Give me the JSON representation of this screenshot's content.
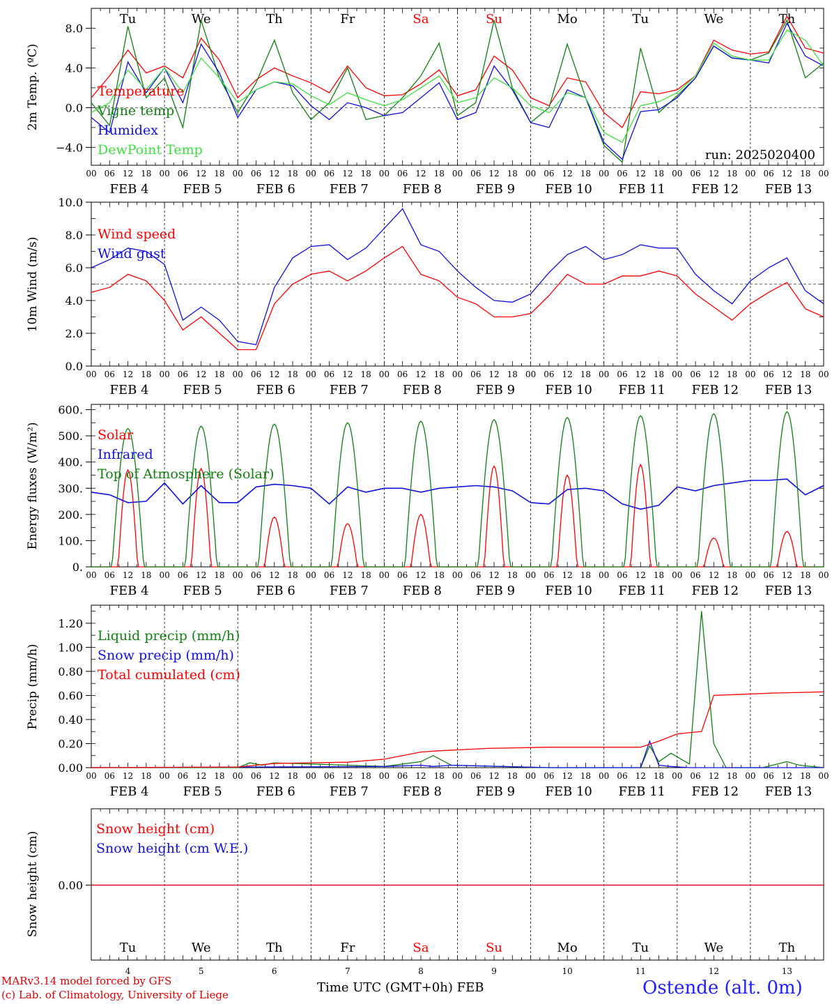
{
  "chart_data": [
    {
      "type": "line",
      "ylabel": "2m Temp. (ºC)",
      "ylim": [
        -5.8,
        10
      ],
      "yticks": [
        "8.0",
        "4.0",
        "0.0",
        "−4.0"
      ],
      "ytick_values": [
        8,
        4,
        0,
        -4
      ],
      "reference_line": 0,
      "annotation": "run: 2025020400",
      "day_labels": [
        "Tu",
        "We",
        "Th",
        "Fr",
        "Sa",
        "Su",
        "Mo",
        "Tu",
        "We",
        "Th"
      ],
      "x_hours": [
        0,
        6,
        12,
        18,
        24,
        30,
        36,
        42,
        48,
        54,
        60,
        66,
        72,
        78,
        84,
        90,
        96,
        102,
        108,
        114,
        120,
        126,
        132,
        138,
        144,
        150,
        156,
        162,
        168,
        174,
        180,
        186,
        192,
        198,
        204,
        210,
        216,
        222,
        228,
        234,
        240
      ],
      "series": [
        {
          "name": "Temperature",
          "color": "#ff0000",
          "values": [
            1.0,
            3.2,
            5.8,
            3.5,
            4.2,
            3.0,
            7.0,
            4.8,
            1.0,
            2.8,
            4.0,
            3.2,
            2.5,
            1.5,
            4.2,
            2.0,
            1.2,
            1.3,
            2.4,
            3.8,
            1.2,
            1.8,
            5.2,
            3.8,
            1.0,
            0.2,
            3.0,
            2.6,
            -0.5,
            -2.0,
            1.6,
            1.4,
            1.8,
            3.2,
            6.8,
            5.8,
            5.4,
            5.6,
            9.2,
            6.0,
            5.5
          ]
        },
        {
          "name": "Vigne temp",
          "color": "#108010",
          "values": [
            0.5,
            -1.8,
            8.2,
            1.0,
            3.0,
            -2.0,
            8.8,
            3.0,
            -0.5,
            2.5,
            6.8,
            1.5,
            -1.2,
            0.5,
            4.0,
            -1.2,
            -0.8,
            1.0,
            3.2,
            6.5,
            -0.8,
            0.5,
            8.8,
            2.0,
            -1.5,
            0.0,
            6.4,
            1.0,
            -3.8,
            -5.5,
            6.0,
            -0.5,
            1.2,
            3.0,
            6.2,
            5.0,
            4.8,
            5.5,
            8.8,
            3.0,
            4.5
          ]
        },
        {
          "name": "Humidex",
          "color": "#1010e0",
          "values": [
            -1.0,
            -2.5,
            4.6,
            1.5,
            4.0,
            0.5,
            6.4,
            3.5,
            -1.0,
            1.8,
            2.6,
            2.2,
            0.2,
            -1.2,
            0.5,
            0.0,
            -0.8,
            -0.5,
            1.0,
            2.5,
            -1.2,
            -0.5,
            4.2,
            1.8,
            -1.5,
            -2.0,
            1.8,
            1.0,
            -3.5,
            -5.2,
            -0.4,
            -0.2,
            1.0,
            3.0,
            6.2,
            5.0,
            4.8,
            4.5,
            8.5,
            5.2,
            4.2
          ]
        },
        {
          "name": "DewPoint Temp",
          "color": "#40e040",
          "values": [
            -0.5,
            0.5,
            3.8,
            1.8,
            4.0,
            1.5,
            5.0,
            3.0,
            0.5,
            1.8,
            2.6,
            2.4,
            1.2,
            0.3,
            1.5,
            0.8,
            0.2,
            0.8,
            2.0,
            3.2,
            0.5,
            1.0,
            3.0,
            2.0,
            0.2,
            -0.5,
            1.5,
            1.0,
            -2.5,
            -3.5,
            0.2,
            0.6,
            1.5,
            3.2,
            6.5,
            5.2,
            4.8,
            4.8,
            7.8,
            6.8,
            4.2
          ]
        }
      ]
    },
    {
      "type": "line",
      "ylabel": "10m Wind (m/s)",
      "ylim": [
        0,
        10
      ],
      "yticks": [
        "10.0",
        "8.0",
        "6.0",
        "4.0",
        "2.0",
        "0.0"
      ],
      "ytick_values": [
        10,
        8,
        6,
        4,
        2,
        0
      ],
      "reference_line": 5,
      "x_hours": [
        0,
        6,
        12,
        18,
        24,
        30,
        36,
        42,
        48,
        54,
        60,
        66,
        72,
        78,
        84,
        90,
        96,
        102,
        108,
        114,
        120,
        126,
        132,
        138,
        144,
        150,
        156,
        162,
        168,
        174,
        180,
        186,
        192,
        198,
        204,
        210,
        216,
        222,
        228,
        234,
        240
      ],
      "series": [
        {
          "name": "Wind speed",
          "color": "#ff0000",
          "values": [
            4.5,
            4.8,
            5.6,
            5.2,
            4.0,
            2.2,
            3.0,
            2.0,
            1.0,
            1.0,
            3.8,
            5.0,
            5.6,
            5.8,
            5.2,
            5.8,
            6.6,
            7.3,
            5.6,
            5.2,
            4.2,
            3.8,
            3.0,
            3.0,
            3.2,
            4.3,
            5.6,
            5.0,
            5.0,
            5.5,
            5.5,
            5.8,
            5.5,
            4.4,
            3.6,
            2.8,
            3.8,
            4.5,
            5.1,
            3.5,
            3.0
          ]
        },
        {
          "name": "Wind gust",
          "color": "#1010e0",
          "values": [
            6.0,
            6.5,
            7.2,
            7.0,
            6.2,
            2.8,
            3.6,
            2.8,
            1.5,
            1.3,
            4.8,
            6.6,
            7.3,
            7.4,
            6.5,
            7.2,
            8.4,
            9.6,
            7.4,
            7.0,
            5.8,
            4.8,
            4.0,
            3.9,
            4.4,
            5.7,
            6.8,
            7.3,
            6.5,
            6.8,
            7.4,
            7.2,
            7.2,
            5.6,
            4.6,
            3.8,
            5.2,
            6.0,
            6.6,
            4.6,
            3.8
          ]
        }
      ]
    },
    {
      "type": "line",
      "ylabel": "Energy fluxes (W/m²)",
      "ylim": [
        0,
        620
      ],
      "yticks": [
        "600.",
        "500.",
        "400.",
        "300.",
        "200.",
        "100.",
        "0."
      ],
      "ytick_values": [
        600,
        500,
        400,
        300,
        200,
        100,
        0
      ],
      "series": [
        {
          "name": "Solar",
          "color": "#ff0000",
          "daily_peak_hour": 12,
          "daily_peaks": [
            370,
            375,
            190,
            165,
            200,
            385,
            350,
            390,
            110,
            135
          ]
        },
        {
          "name": "Infrared",
          "color": "#1010e0",
          "x_hours": [
            0,
            6,
            12,
            18,
            24,
            30,
            36,
            42,
            48,
            54,
            60,
            66,
            72,
            78,
            84,
            90,
            96,
            102,
            108,
            114,
            120,
            126,
            132,
            138,
            144,
            150,
            156,
            162,
            168,
            174,
            180,
            186,
            192,
            198,
            204,
            210,
            216,
            222,
            228,
            234,
            240
          ],
          "values": [
            285,
            275,
            245,
            250,
            320,
            240,
            310,
            245,
            245,
            305,
            315,
            310,
            300,
            240,
            305,
            285,
            300,
            300,
            285,
            300,
            305,
            310,
            305,
            290,
            245,
            240,
            295,
            300,
            290,
            240,
            220,
            235,
            305,
            290,
            310,
            320,
            330,
            330,
            335,
            275,
            310
          ]
        },
        {
          "name": "Top of Atmosphere (Solar)",
          "color": "#108010",
          "daily_peak_hour": 12,
          "daily_peaks": [
            528,
            537,
            545,
            550,
            556,
            562,
            570,
            577,
            584,
            592
          ]
        }
      ]
    },
    {
      "type": "line",
      "ylabel": "Precip (mm/h)",
      "ylim": [
        0,
        1.35
      ],
      "yticks": [
        "1.20",
        "1.00",
        "0.80",
        "0.60",
        "0.40",
        "0.20",
        "0.00"
      ],
      "ytick_values": [
        1.2,
        1.0,
        0.8,
        0.6,
        0.4,
        0.2,
        0.0
      ],
      "series": [
        {
          "name": "Liquid precip (mm/h)",
          "color": "#108010",
          "x_hours": [
            0,
            48,
            52,
            56,
            60,
            96,
            108,
            112,
            118,
            150,
            180,
            183,
            186,
            190,
            196,
            200,
            204,
            208,
            212,
            220,
            228,
            232,
            240
          ],
          "values": [
            0,
            0,
            0.04,
            0.02,
            0.04,
            0.01,
            0.05,
            0.1,
            0.02,
            0,
            0,
            0.18,
            0.05,
            0.12,
            0.03,
            1.3,
            0.2,
            0,
            0,
            0,
            0.05,
            0.02,
            0
          ]
        },
        {
          "name": "Snow precip (mm/h)",
          "color": "#1010e0",
          "x_hours": [
            0,
            96,
            108,
            112,
            118,
            150,
            180,
            183,
            186,
            190,
            196,
            240
          ],
          "values": [
            0,
            0.01,
            0.02,
            0.01,
            0.02,
            0,
            0,
            0.22,
            0.02,
            0.01,
            0,
            0
          ]
        },
        {
          "name": "Total cumulated (cm)",
          "color": "#ff0000",
          "x_hours": [
            0,
            48,
            60,
            84,
            96,
            108,
            114,
            130,
            150,
            170,
            180,
            186,
            192,
            196,
            200,
            204,
            214,
            224,
            240
          ],
          "values": [
            0,
            0.005,
            0.035,
            0.045,
            0.07,
            0.13,
            0.14,
            0.16,
            0.17,
            0.17,
            0.17,
            0.22,
            0.28,
            0.29,
            0.3,
            0.6,
            0.61,
            0.62,
            0.63
          ]
        }
      ]
    },
    {
      "type": "line",
      "ylabel": "Snow height (cm)",
      "yticks": [
        "0.00"
      ],
      "ytick_values": [
        0
      ],
      "series": [
        {
          "name": "Snow height (cm)",
          "color": "#ff0000",
          "values": [
            0,
            0
          ]
        },
        {
          "name": "Snow height (cm W.E.)",
          "color": "#1010e0",
          "values": [
            0,
            0
          ]
        }
      ],
      "day_labels": [
        "Tu",
        "We",
        "Th",
        "Fr",
        "Sa",
        "Su",
        "Mo",
        "Tu",
        "We",
        "Th"
      ],
      "day_numbers": [
        "4",
        "5",
        "6",
        "7",
        "8",
        "9",
        "10",
        "11",
        "12",
        "13"
      ]
    }
  ],
  "x_hour_tick_labels": [
    "00",
    "06",
    "12",
    "18"
  ],
  "date_labels": [
    "FEB  4",
    "FEB  5",
    "FEB  6",
    "FEB  7",
    "FEB  8",
    "FEB  9",
    "FEB 10",
    "FEB 11",
    "FEB 12",
    "FEB 13"
  ],
  "weekend_color": "#ff0000",
  "weekend_indices": [
    4,
    5
  ],
  "footer": {
    "credit_line1": "MARv3.14 model forced by GFS",
    "credit_line2": "(c) Lab. of Climatology, University of Liege",
    "x_axis_title": "Time UTC (GMT+0h) FEB",
    "station": "Ostende (alt. 0m)"
  }
}
